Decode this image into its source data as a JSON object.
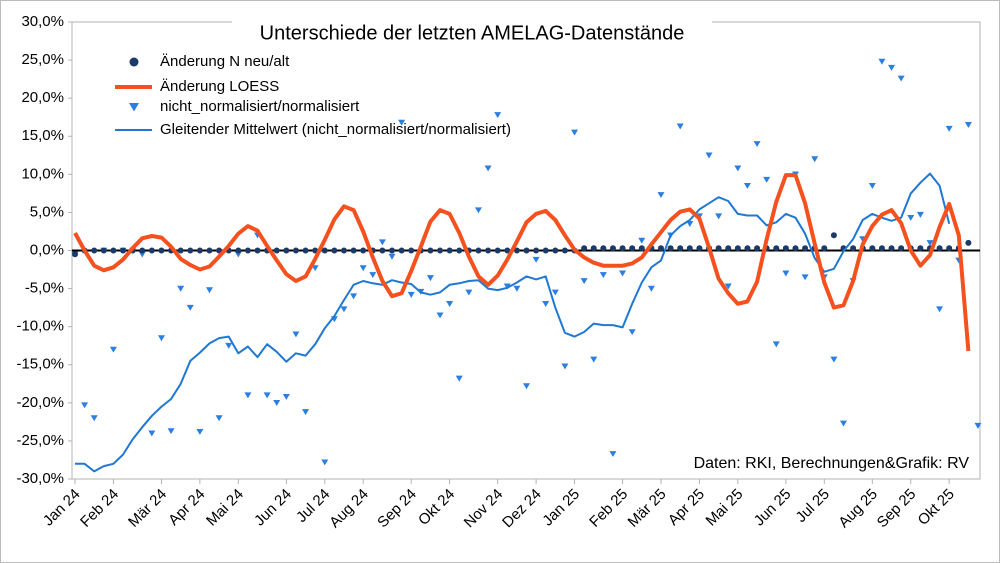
{
  "chart_data": {
    "type": "mixed",
    "title": "Unterschiede der letzten AMELAG-Datenstände",
    "annotation": "Daten: RKI, Berechnungen&Grafik: RV",
    "categories": [
      "Jan 24",
      null,
      null,
      null,
      "Feb 24",
      null,
      null,
      null,
      null,
      "Mär 24",
      null,
      null,
      null,
      "Apr 24",
      null,
      null,
      null,
      "Mai 24",
      null,
      null,
      null,
      null,
      "Jun 24",
      null,
      null,
      null,
      "Jul 24",
      null,
      null,
      null,
      "Aug 24",
      null,
      null,
      null,
      null,
      "Sep 24",
      null,
      null,
      null,
      "Okt 24",
      null,
      null,
      null,
      null,
      "Nov 24",
      null,
      null,
      null,
      "Dez 24",
      null,
      null,
      null,
      "Jan 25",
      null,
      null,
      null,
      null,
      "Feb 25",
      null,
      null,
      null,
      "Mär 25",
      null,
      null,
      null,
      "Apr 25",
      null,
      null,
      null,
      "Mai 25",
      null,
      null,
      null,
      null,
      "Jun 25",
      null,
      null,
      null,
      "Jul 25",
      null,
      null,
      null,
      null,
      "Aug 25",
      null,
      null,
      null,
      "Sep 25",
      null,
      null,
      null,
      "Okt 25",
      null,
      null,
      null
    ],
    "ylim": [
      -30,
      30
    ],
    "yticks": [
      {
        "value": -30,
        "label": "-30,0%"
      },
      {
        "value": -25,
        "label": "-25,0%"
      },
      {
        "value": -20,
        "label": "-20,0%"
      },
      {
        "value": -15,
        "label": "-15,0%"
      },
      {
        "value": -10,
        "label": "-10,0%"
      },
      {
        "value": -5,
        "label": "-5,0%"
      },
      {
        "value": 0,
        "label": "0,0%"
      },
      {
        "value": 5,
        "label": "5,0%"
      },
      {
        "value": 10,
        "label": "10,0%"
      },
      {
        "value": 15,
        "label": "15,0%"
      },
      {
        "value": 20,
        "label": "20,0%"
      },
      {
        "value": 25,
        "label": "25,0%"
      },
      {
        "value": 30,
        "label": "30,0%"
      }
    ],
    "grid": false,
    "legend": "top-left",
    "series": [
      {
        "name": "Änderung N neu/alt",
        "color": "#1b3a66",
        "marker": "circle",
        "values": [
          -0.5,
          0,
          0,
          0,
          0,
          0,
          0,
          0,
          0,
          0,
          0,
          0,
          0,
          0,
          0,
          0,
          0,
          0,
          0,
          0,
          0,
          0,
          0,
          0,
          0,
          0,
          0,
          0,
          0,
          0,
          0,
          0,
          0,
          0,
          0,
          0,
          0,
          0,
          0,
          0,
          0,
          0,
          0,
          0,
          0,
          0,
          0,
          0,
          0,
          0,
          0,
          0,
          0,
          0.3,
          0.3,
          0.3,
          0.3,
          0.3,
          0.3,
          0.3,
          0.3,
          0.3,
          0.3,
          0.3,
          0.3,
          0.3,
          0.3,
          0.3,
          0.3,
          0.3,
          0.3,
          0.3,
          0.3,
          0.3,
          0.3,
          0.3,
          0.3,
          0.3,
          0.3,
          2,
          0.3,
          0.3,
          0.3,
          0.3,
          0.3,
          0.3,
          0.3,
          0.3,
          0.3,
          0.3,
          0.3,
          0.3,
          0.3,
          1,
          null
        ]
      },
      {
        "name": "Änderung LOESS",
        "color": "#f4511e",
        "marker": "line",
        "line_width": 4,
        "values": [
          2.3,
          0,
          -2,
          -2.6,
          -2.2,
          -1.2,
          0.3,
          1.6,
          1.9,
          1.7,
          0.5,
          -1.1,
          -1.9,
          -2.5,
          -2.1,
          -0.8,
          0.6,
          2.2,
          3.2,
          2.6,
          0.6,
          -1.3,
          -3.1,
          -4,
          -3.4,
          -1.1,
          1.4,
          4.1,
          5.8,
          5.3,
          2.5,
          -0.9,
          -4,
          -6,
          -5.6,
          -2.7,
          0.5,
          3.8,
          5.3,
          4.8,
          2.3,
          -0.8,
          -3.4,
          -4.5,
          -3.3,
          -1.2,
          1.2,
          3.7,
          4.8,
          5.2,
          4,
          2,
          0.1,
          -0.9,
          -1.6,
          -2,
          -2,
          -2,
          -1.7,
          -0.9,
          0.8,
          2.4,
          4,
          5.1,
          5.4,
          4.2,
          0.4,
          -3.7,
          -5.6,
          -7,
          -6.7,
          -4.1,
          1.5,
          6.4,
          9.9,
          9.9,
          6.2,
          0.9,
          -4.2,
          -7.5,
          -7.2,
          -4,
          0.8,
          3.2,
          4.7,
          5.3,
          3.6,
          0,
          -2,
          -0.6,
          3.1,
          6.1,
          2,
          -13.2,
          null
        ]
      },
      {
        "name": "nicht_normalisiert/normalisiert",
        "color": "#2a7fe0",
        "marker": "triangle",
        "values": [
          -0.5,
          -20.3,
          -22,
          0,
          -13,
          0,
          0,
          -0.5,
          -24,
          -11.5,
          -23.7,
          -5,
          -7.5,
          -23.8,
          -5.2,
          -22,
          -12.5,
          -0.5,
          -19,
          2,
          -19,
          -20,
          -19.2,
          -11,
          -21.2,
          -2.3,
          -27.8,
          -9,
          -7.7,
          -6,
          -2.3,
          -3.2,
          1.1,
          -0.8,
          16.8,
          -5.8,
          -5.4,
          -3.6,
          -8.5,
          -7,
          -16.8,
          -5.5,
          5.3,
          10.8,
          17.8,
          -4.7,
          -5,
          -17.8,
          -1.2,
          -7,
          -5.5,
          -15.2,
          15.5,
          -4,
          -14.3,
          -3.2,
          -26.7,
          -3,
          -10.7,
          1.3,
          -5,
          7.3,
          2,
          16.3,
          3.5,
          4.5,
          12.5,
          4.5,
          -4.7,
          10.8,
          8.5,
          14,
          9.3,
          -12.3,
          -3,
          10,
          -3.5,
          12,
          -3.5,
          -14.3,
          -22.7,
          -4,
          1.5,
          8.5,
          24.8,
          24,
          22.6,
          4.3,
          4.7,
          1,
          -7.7,
          16,
          -1.3,
          16.5,
          -23
        ]
      },
      {
        "name": "Gleitender Mittelwert (nicht_normalisiert/normalisiert)",
        "color": "#1f78d1",
        "marker": "line",
        "line_width": 2,
        "values": [
          -28,
          -28,
          -29,
          -28.3,
          -28,
          -26.8,
          -24.8,
          -23.2,
          -21.7,
          -20.5,
          -19.5,
          -17.5,
          -14.5,
          -13.4,
          -12.2,
          -11.5,
          -11.3,
          -13.5,
          -12.6,
          -14,
          -12.3,
          -13.3,
          -14.6,
          -13.5,
          -13.8,
          -12.3,
          -10.2,
          -8.6,
          -6.5,
          -4.5,
          -4,
          -4.3,
          -4.5,
          -3.9,
          -4.2,
          -4.4,
          -5.5,
          -5.8,
          -5.5,
          -4.5,
          -4.3,
          -4,
          -3.9,
          -5,
          -5.2,
          -4.9,
          -4.2,
          -3.4,
          -3.8,
          -3.4,
          -7.5,
          -10.8,
          -11.3,
          -10.7,
          -9.6,
          -9.8,
          -9.8,
          -10.1,
          -7,
          -4.2,
          -2.2,
          -1.3,
          2,
          3.2,
          4,
          5.4,
          6.2,
          7,
          6.5,
          4.8,
          4.6,
          4.6,
          3.3,
          3.7,
          4.8,
          4.3,
          2.2,
          -1,
          -2.8,
          -2.4,
          -0.1,
          1.5,
          4,
          4.8,
          4.3,
          3.9,
          4.3,
          7.5,
          8.9,
          10.1,
          8.5,
          3.5,
          null,
          null,
          null
        ]
      }
    ]
  }
}
